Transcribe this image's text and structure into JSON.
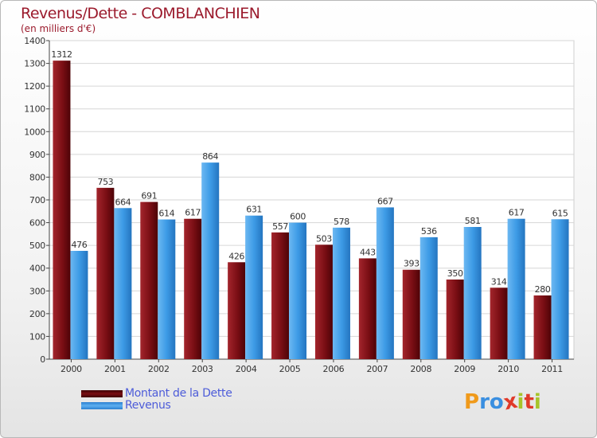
{
  "chart_data": {
    "type": "bar",
    "title": "Revenus/Dette - COMBLANCHIEN",
    "subtitle": "(en milliers d'€)",
    "categories": [
      "2000",
      "2001",
      "2002",
      "2003",
      "2004",
      "2005",
      "2006",
      "2007",
      "2008",
      "2009",
      "2010",
      "2011"
    ],
    "series": [
      {
        "name": "Montant de la Dette",
        "color": "#7a0e14",
        "values": [
          1312,
          753,
          691,
          617,
          426,
          557,
          503,
          443,
          393,
          350,
          314,
          280
        ]
      },
      {
        "name": "Revenus",
        "color": "#3d9be6",
        "values": [
          476,
          664,
          614,
          864,
          631,
          600,
          578,
          667,
          536,
          581,
          617,
          615
        ]
      }
    ],
    "ylim": [
      0,
      1400
    ],
    "yticks": [
      0,
      100,
      200,
      300,
      400,
      500,
      600,
      700,
      800,
      900,
      1000,
      1100,
      1200,
      1300,
      1400
    ],
    "grid": true,
    "legend_position": "bottom-left"
  },
  "logo": {
    "letters": [
      "P",
      "r",
      "o",
      "x",
      "i",
      "t",
      "i"
    ],
    "colors": [
      "#f09a1b",
      "#3a8fe0",
      "#3a8fe0",
      "#e03a2a",
      "#a7c42a",
      "#e03a2a",
      "#a7c42a"
    ]
  }
}
